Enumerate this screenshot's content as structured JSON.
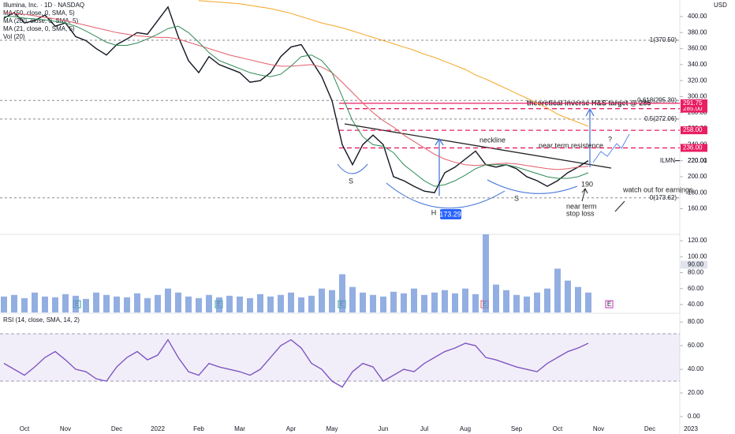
{
  "header": {
    "currency": "USD"
  },
  "chart_data": [
    {
      "type": "line",
      "legend": [
        "Illumina, Inc. · 1D · NASDAQ",
        "MA (50, close, 0, SMA, 5)",
        "MA (200, close, 0, SMA, 5)",
        "MA (21, close, 0, SMA, 5)",
        "Vol (20)"
      ],
      "ylim": [
        129,
        420.7
      ],
      "yticks": [
        {
          "value": 160,
          "label": "160.00"
        },
        {
          "value": 180,
          "label": "180.00"
        },
        {
          "value": 200,
          "label": "200.00"
        },
        {
          "value": 220,
          "label": "220.00"
        },
        {
          "value": 240,
          "label": "240.00"
        },
        {
          "value": 260,
          "label": "260.00"
        },
        {
          "value": 280,
          "label": "280.00"
        },
        {
          "value": 300,
          "label": "300.00"
        },
        {
          "value": 320,
          "label": "320.00"
        },
        {
          "value": 340,
          "label": "340.00"
        },
        {
          "value": 360,
          "label": "360.00"
        },
        {
          "value": 380,
          "label": "380.00"
        },
        {
          "value": 400,
          "label": "400.00"
        }
      ],
      "grid": false,
      "series": [
        {
          "name": "ILMN",
          "color": "#131722",
          "values": [
            398,
            405,
            392,
            395,
            402,
            388,
            392,
            375,
            370,
            360,
            352,
            365,
            372,
            380,
            378,
            395,
            412,
            375,
            345,
            330,
            350,
            340,
            335,
            330,
            318,
            320,
            330,
            350,
            362,
            365,
            345,
            325,
            295,
            240,
            215,
            240,
            252,
            240,
            200,
            195,
            188,
            182,
            180,
            205,
            212,
            222,
            232,
            215,
            212,
            215,
            210,
            200,
            195,
            188,
            195,
            205,
            212,
            220.01,
            null,
            null,
            null,
            null,
            null,
            null,
            null,
            null,
            null,
            null,
            null,
            null,
            null
          ]
        },
        {
          "name": "MA 50",
          "color": "#e35d6a",
          "values": [
            405,
            404,
            403,
            401,
            399,
            397,
            395,
            392,
            389,
            386,
            383,
            380,
            378,
            376,
            375,
            374,
            374,
            372,
            368,
            364,
            360,
            356,
            352,
            349,
            346,
            343,
            340,
            338,
            338,
            339,
            340,
            337,
            330,
            318,
            305,
            292,
            280,
            270,
            262,
            252,
            244,
            236,
            228,
            222,
            218,
            215,
            214,
            215,
            216,
            217,
            216,
            214,
            212,
            210,
            209,
            210,
            212,
            213,
            null,
            null,
            null,
            null,
            null,
            null,
            null,
            null,
            null,
            null,
            null,
            null,
            null
          ]
        },
        {
          "name": "MA 200",
          "color": "#f5a623",
          "values": [
            null,
            null,
            null,
            null,
            null,
            null,
            null,
            null,
            null,
            null,
            null,
            null,
            null,
            null,
            null,
            null,
            null,
            null,
            null,
            420,
            419,
            418,
            417,
            416,
            414,
            412,
            410,
            407,
            404,
            400,
            396,
            392,
            389,
            386,
            382,
            378,
            374,
            370,
            366,
            362,
            358,
            353,
            349,
            344,
            339,
            334,
            327,
            322,
            316,
            310,
            304,
            298,
            292,
            286,
            278,
            273,
            268,
            263,
            null,
            null,
            null,
            null,
            null,
            null,
            null,
            null,
            null,
            null,
            null,
            null,
            null
          ]
        },
        {
          "name": "MA 21",
          "color": "#2e8b57",
          "values": [
            400,
            400,
            398,
            397,
            396,
            394,
            392,
            388,
            382,
            375,
            368,
            364,
            364,
            367,
            372,
            378,
            385,
            388,
            380,
            368,
            355,
            345,
            340,
            335,
            330,
            327,
            325,
            328,
            338,
            350,
            352,
            345,
            330,
            300,
            270,
            250,
            240,
            238,
            230,
            215,
            205,
            195,
            188,
            190,
            195,
            202,
            210,
            215,
            215,
            215,
            212,
            208,
            204,
            200,
            198,
            198,
            200,
            205,
            null,
            null,
            null,
            null,
            null,
            null,
            null,
            null,
            null,
            null,
            null,
            null,
            null
          ]
        }
      ],
      "fib_levels": [
        {
          "value": 370.5,
          "label": "1(370.50)"
        },
        {
          "value": 295.3,
          "label": "0.618(295.30)"
        },
        {
          "value": 272.06,
          "label": "0.5(272.06)"
        },
        {
          "value": 173.62,
          "label": "0(173.62)"
        }
      ],
      "resistance_levels": [
        {
          "value": 285,
          "label": "285.00"
        },
        {
          "value": 258,
          "label": "258.00"
        },
        {
          "value": 236,
          "label": "236.00"
        }
      ],
      "target_tag": {
        "value": 291.75,
        "label": "291.75"
      },
      "last_price": {
        "symbol": "ILMN",
        "value": 220.01,
        "label": "220.01"
      },
      "annotations": [
        "S",
        "H",
        "S",
        "173.29",
        "neckline",
        "near term resistence",
        "?",
        "theoretical inverse H&S target @ 285",
        "190",
        "near term",
        "stop loss",
        "watch out for earnings"
      ]
    },
    {
      "type": "bar",
      "color": "#6f94d8",
      "ylim": [
        30,
        127
      ],
      "yticks": [
        {
          "value": 40,
          "label": "40.00"
        },
        {
          "value": 60,
          "label": "60.00"
        },
        {
          "value": 80,
          "label": "80.00"
        },
        {
          "value": 100,
          "label": "100.00"
        },
        {
          "value": 120,
          "label": "120.00"
        }
      ],
      "crosshair": {
        "value": 90,
        "label": "90.00"
      },
      "earnings": [
        "E",
        "E",
        "E",
        "E",
        "E"
      ],
      "values": [
        50,
        52,
        48,
        55,
        50,
        49,
        53,
        51,
        47,
        55,
        52,
        50,
        49,
        54,
        48,
        52,
        60,
        55,
        50,
        48,
        52,
        49,
        51,
        50,
        48,
        53,
        50,
        52,
        55,
        49,
        51,
        60,
        58,
        78,
        62,
        55,
        52,
        50,
        56,
        54,
        60,
        52,
        55,
        58,
        54,
        60,
        53,
        128,
        65,
        58,
        52,
        50,
        55,
        60,
        85,
        70,
        62,
        55,
        null,
        null,
        null,
        null,
        null,
        null,
        null,
        null,
        null,
        null,
        null,
        null,
        null
      ]
    },
    {
      "type": "line",
      "title": "RSI (14, close, SMA, 14, 2)",
      "ylim": [
        -8,
        86.7
      ],
      "yticks": [
        {
          "value": 0,
          "label": "0.00"
        },
        {
          "value": 20,
          "label": "20.00"
        },
        {
          "value": 40,
          "label": "40.00"
        },
        {
          "value": 60,
          "label": "60.00"
        },
        {
          "value": 80,
          "label": "80.00"
        }
      ],
      "band": [
        30,
        70
      ],
      "categories": [
        null,
        null,
        "Oct",
        null,
        null,
        null,
        "Nov",
        null,
        null,
        null,
        null,
        "Dec",
        null,
        null,
        null,
        "2022",
        null,
        null,
        null,
        "Feb",
        null,
        null,
        null,
        "Mar",
        null,
        null,
        null,
        null,
        "Apr",
        null,
        null,
        null,
        "May",
        null,
        null,
        null,
        null,
        "Jun",
        null,
        null,
        null,
        "Jul",
        null,
        null,
        null,
        "Aug",
        null,
        null,
        null,
        null,
        "Sep",
        null,
        null,
        null,
        "Oct",
        null,
        null,
        null,
        "Nov",
        null,
        null,
        null,
        null,
        "Dec",
        null,
        null,
        null,
        "2023",
        null,
        null,
        null
      ],
      "series": [
        {
          "name": "RSI",
          "color": "#7e57c2",
          "values": [
            45,
            40,
            35,
            42,
            50,
            55,
            48,
            40,
            38,
            32,
            30,
            42,
            50,
            55,
            48,
            52,
            65,
            50,
            38,
            35,
            45,
            42,
            40,
            38,
            35,
            40,
            50,
            60,
            65,
            58,
            45,
            40,
            30,
            25,
            38,
            45,
            42,
            30,
            35,
            40,
            38,
            45,
            50,
            55,
            58,
            62,
            60,
            50,
            48,
            45,
            42,
            40,
            38,
            45,
            50,
            55,
            58,
            62,
            null,
            null,
            null,
            null,
            null,
            null,
            null,
            null,
            null,
            null,
            null,
            null,
            null
          ]
        }
      ]
    }
  ]
}
